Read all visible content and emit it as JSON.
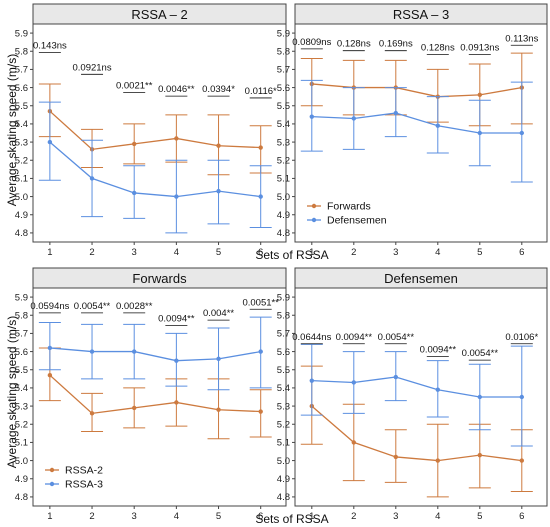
{
  "figure": {
    "ylabel": "Average skating speed (m/s)",
    "xlabel": "Sets of RSSA"
  },
  "colors": {
    "orange": "#CD7A3F",
    "blue": "#5B8FE0",
    "strip_bg": "#E8E8E8",
    "border": "#444444"
  },
  "chart_data": [
    {
      "type": "line",
      "title": "RSSA – 2",
      "xlabel": "Sets of RSSA",
      "ylabel": "Average skating speed (m/s)",
      "x": [
        1,
        2,
        3,
        4,
        5,
        6
      ],
      "xlim": [
        0.6,
        6.6
      ],
      "ylim": [
        4.75,
        5.95
      ],
      "yticks": [
        4.8,
        4.9,
        5.0,
        5.1,
        5.2,
        5.3,
        5.4,
        5.5,
        5.6,
        5.7,
        5.8,
        5.9
      ],
      "series": [
        {
          "name": "Forwards",
          "color": "orange",
          "values": [
            5.47,
            5.26,
            5.29,
            5.32,
            5.28,
            5.27
          ],
          "upper": [
            5.62,
            5.37,
            5.4,
            5.45,
            5.45,
            5.39
          ],
          "lower": [
            5.33,
            5.16,
            5.18,
            5.19,
            5.12,
            5.13
          ]
        },
        {
          "name": "Defensemen",
          "color": "blue",
          "values": [
            5.3,
            5.1,
            5.02,
            5.0,
            5.03,
            5.0
          ],
          "upper": [
            5.52,
            5.31,
            5.17,
            5.2,
            5.2,
            5.17
          ],
          "lower": [
            5.09,
            4.89,
            4.88,
            4.8,
            4.85,
            4.83
          ]
        }
      ],
      "annotations": [
        "0.143ns",
        "0.0921ns",
        "0.0021**",
        "0.0046**",
        "0.0394*",
        "0.0116*"
      ],
      "annotation_y": [
        5.815,
        5.695,
        5.595,
        5.575,
        5.575,
        5.565
      ],
      "legend": null
    },
    {
      "type": "line",
      "title": "RSSA – 3",
      "x": [
        1,
        2,
        3,
        4,
        5,
        6
      ],
      "xlim": [
        0.6,
        6.6
      ],
      "ylim": [
        4.75,
        5.95
      ],
      "yticks": [
        4.8,
        4.9,
        5.0,
        5.1,
        5.2,
        5.3,
        5.4,
        5.5,
        5.6,
        5.7,
        5.8,
        5.9
      ],
      "series": [
        {
          "name": "Forwards",
          "color": "orange",
          "values": [
            5.62,
            5.6,
            5.6,
            5.55,
            5.56,
            5.6
          ],
          "upper": [
            5.76,
            5.75,
            5.75,
            5.7,
            5.73,
            5.79
          ],
          "lower": [
            5.5,
            5.45,
            5.45,
            5.41,
            5.39,
            5.4
          ]
        },
        {
          "name": "Defensemen",
          "color": "blue",
          "values": [
            5.44,
            5.43,
            5.46,
            5.39,
            5.35,
            5.35
          ],
          "upper": [
            5.64,
            5.6,
            5.6,
            5.55,
            5.53,
            5.63
          ],
          "lower": [
            5.25,
            5.26,
            5.33,
            5.24,
            5.17,
            5.08
          ]
        }
      ],
      "annotations": [
        "0.0809ns",
        "0.128ns",
        "0.169ns",
        "0.128ns",
        "0.0913ns",
        "0.113ns"
      ],
      "annotation_y": [
        5.835,
        5.825,
        5.825,
        5.805,
        5.805,
        5.855
      ],
      "legend": {
        "position": "bottom-left",
        "entries": [
          "Forwards",
          "Defensemen"
        ]
      }
    },
    {
      "type": "line",
      "title": "Forwards",
      "x": [
        1,
        2,
        3,
        4,
        5,
        6
      ],
      "xlim": [
        0.6,
        6.6
      ],
      "ylim": [
        4.75,
        5.95
      ],
      "yticks": [
        4.8,
        4.9,
        5.0,
        5.1,
        5.2,
        5.3,
        5.4,
        5.5,
        5.6,
        5.7,
        5.8,
        5.9
      ],
      "series": [
        {
          "name": "RSSA-2",
          "color": "orange",
          "values": [
            5.47,
            5.26,
            5.29,
            5.32,
            5.28,
            5.27
          ],
          "upper": [
            5.62,
            5.37,
            5.4,
            5.45,
            5.45,
            5.39
          ],
          "lower": [
            5.33,
            5.16,
            5.18,
            5.19,
            5.12,
            5.13
          ]
        },
        {
          "name": "RSSA-3",
          "color": "blue",
          "values": [
            5.62,
            5.6,
            5.6,
            5.55,
            5.56,
            5.6
          ],
          "upper": [
            5.76,
            5.75,
            5.75,
            5.7,
            5.73,
            5.79
          ],
          "lower": [
            5.5,
            5.45,
            5.45,
            5.41,
            5.39,
            5.4
          ]
        }
      ],
      "annotations": [
        "0.0594ns",
        "0.0054**",
        "0.0028**",
        "0.0094**",
        "0.004**",
        "0.0051**"
      ],
      "annotation_y": [
        5.835,
        5.835,
        5.835,
        5.765,
        5.795,
        5.855
      ],
      "legend": {
        "position": "bottom-left",
        "entries": [
          "RSSA-2",
          "RSSA-3"
        ]
      }
    },
    {
      "type": "line",
      "title": "Defensemen",
      "x": [
        1,
        2,
        3,
        4,
        5,
        6
      ],
      "xlim": [
        0.6,
        6.6
      ],
      "ylim": [
        4.75,
        5.95
      ],
      "yticks": [
        4.8,
        4.9,
        5.0,
        5.1,
        5.2,
        5.3,
        5.4,
        5.5,
        5.6,
        5.7,
        5.8,
        5.9
      ],
      "series": [
        {
          "name": "RSSA-2",
          "color": "orange",
          "values": [
            5.3,
            5.1,
            5.02,
            5.0,
            5.03,
            5.0
          ],
          "upper": [
            5.52,
            5.31,
            5.17,
            5.2,
            5.2,
            5.17
          ],
          "lower": [
            5.09,
            4.89,
            4.88,
            4.8,
            4.85,
            4.83
          ]
        },
        {
          "name": "RSSA-3",
          "color": "blue",
          "values": [
            5.44,
            5.43,
            5.46,
            5.39,
            5.35,
            5.35
          ],
          "upper": [
            5.64,
            5.6,
            5.6,
            5.55,
            5.53,
            5.63
          ],
          "lower": [
            5.25,
            5.26,
            5.33,
            5.24,
            5.17,
            5.08
          ]
        }
      ],
      "annotations": [
        "0.0644ns",
        "0.0094**",
        "0.0054**",
        "0.0094**",
        "0.0054**",
        "0.0106*"
      ],
      "annotation_y": [
        5.665,
        5.665,
        5.665,
        5.595,
        5.575,
        5.665
      ],
      "legend": null
    }
  ]
}
